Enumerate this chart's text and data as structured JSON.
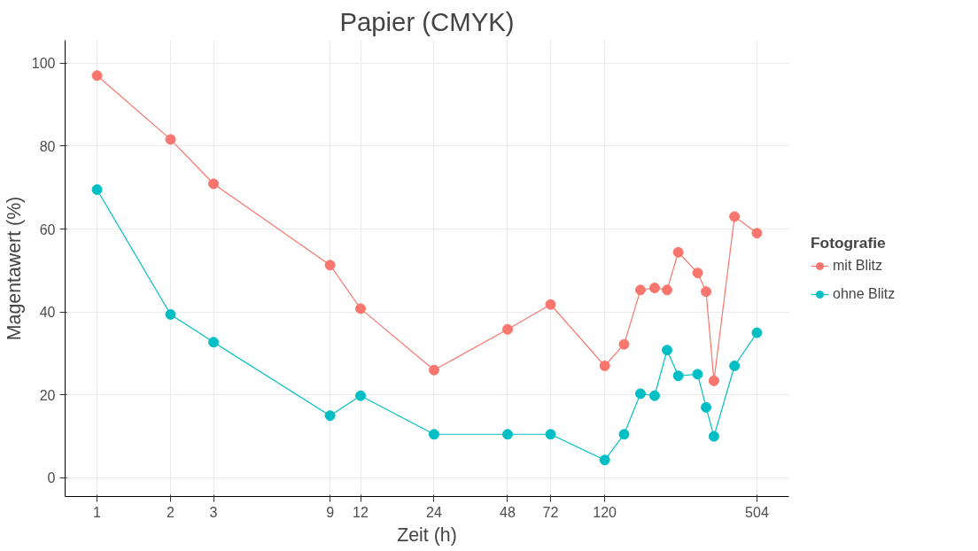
{
  "chart_data": {
    "type": "line",
    "title": "Papier (CMYK)",
    "xlabel": "Zeit (h)",
    "ylabel": "Magentawert (%)",
    "legend_title": "Fotografie",
    "x": [
      1,
      2,
      3,
      9,
      12,
      24,
      48,
      72,
      120,
      144,
      168,
      192,
      216,
      240,
      288,
      312,
      336,
      408,
      504
    ],
    "series": [
      {
        "name": "mit Blitz",
        "color": "#f8766d",
        "values": [
          97,
          81.6,
          70.9,
          51.3,
          40.8,
          26,
          35.8,
          41.8,
          27,
          32.2,
          45.3,
          45.8,
          45.3,
          54.4,
          49.4,
          44.9,
          23.4,
          63,
          59
        ]
      },
      {
        "name": "ohne Blitz",
        "color": "#00bfc4",
        "values": [
          69.5,
          39.4,
          32.7,
          15,
          19.8,
          10.5,
          10.5,
          10.5,
          4.3,
          10.5,
          20.3,
          19.8,
          30.8,
          24.6,
          25,
          17,
          10,
          27,
          35
        ]
      }
    ],
    "log": "x",
    "xlim": [
      0.74,
      681
    ],
    "xticks": [
      1,
      2,
      3,
      9,
      12,
      24,
      48,
      72,
      120,
      504
    ],
    "ylim": [
      -4.5,
      105.5
    ],
    "yticks": [
      0,
      20,
      40,
      60,
      80,
      100
    ],
    "grid": true,
    "legend": "right",
    "marker": "circle",
    "line_style": "solid"
  }
}
